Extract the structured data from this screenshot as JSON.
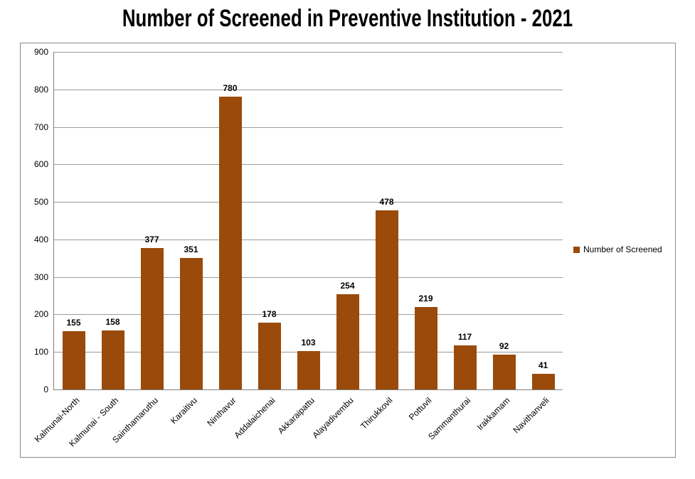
{
  "chart_data": {
    "type": "bar",
    "title": "Number of Screened in Preventive Institution - 2021",
    "categories": [
      "Kalmunai-North",
      "Kalmunai - South",
      "Sainthamaruthu",
      "Karaitivu",
      "Ninthavur",
      "Addalaichenai",
      "Akkaraipattu",
      "Alayadivembu",
      "Thirukkovil",
      "Pottuvil",
      "Sammanthurai",
      "Irakkamam",
      "Navithanveli"
    ],
    "series": [
      {
        "name": "Number of Screened",
        "values": [
          155,
          158,
          377,
          351,
          780,
          178,
          103,
          254,
          478,
          219,
          117,
          92,
          41
        ]
      }
    ],
    "xlabel": "",
    "ylabel": "",
    "ylim": [
      0,
      900
    ],
    "yticks": [
      0,
      100,
      200,
      300,
      400,
      500,
      600,
      700,
      800,
      900
    ],
    "grid": true,
    "data_labels": true,
    "legend_position": "right",
    "x_tick_rotation": -45,
    "colors": {
      "bar": "#9A4A0A",
      "gridline": "#9B9B9B",
      "axis": "#7F7F7F",
      "chart_border": "#8C8C8C",
      "text": "#000000",
      "background": "#FFFFFF"
    }
  }
}
